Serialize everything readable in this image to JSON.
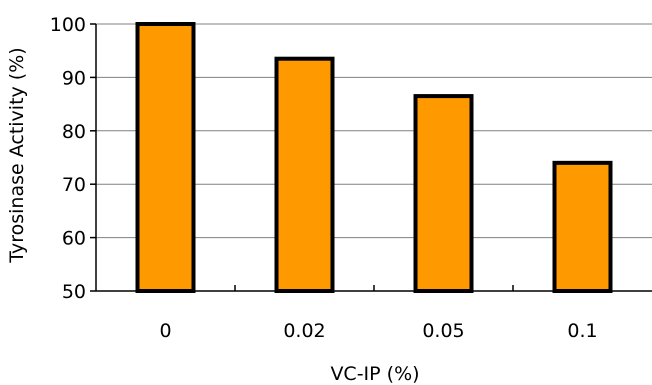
{
  "chart_data": {
    "type": "bar",
    "title": "",
    "xlabel": "VC-IP (%)",
    "ylabel": "Tyrosinase Activity (%)",
    "categories": [
      "0",
      "0.02",
      "0.05",
      "0.1"
    ],
    "values": [
      100,
      93.5,
      86.5,
      74
    ],
    "ylim": [
      50,
      100
    ],
    "yticks": [
      "50",
      "60",
      "70",
      "80",
      "90",
      "100"
    ],
    "grid": true,
    "legend": "none",
    "colors": {
      "bar_fill": "#ff9900",
      "bar_stroke": "#000000",
      "grid": "#808080",
      "axis": "#000000"
    }
  }
}
